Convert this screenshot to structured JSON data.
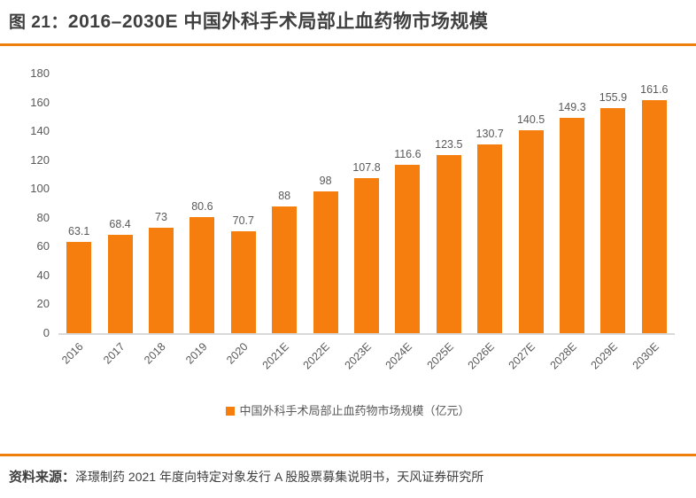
{
  "header": {
    "figure_label": "图 21：",
    "title": "2016–2030E 中国外科手术局部止血药物市场规模"
  },
  "chart_data": {
    "type": "bar",
    "title": "2016–2030E 中国外科手术局部止血药物市场规模",
    "categories": [
      "2016",
      "2017",
      "2018",
      "2019",
      "2020",
      "2021E",
      "2022E",
      "2023E",
      "2024E",
      "2025E",
      "2026E",
      "2027E",
      "2028E",
      "2029E",
      "2030E"
    ],
    "values": [
      63.1,
      68.4,
      73,
      80.6,
      70.7,
      88,
      98,
      107.8,
      116.6,
      123.5,
      130.7,
      140.5,
      149.3,
      155.9,
      161.6
    ],
    "value_labels": [
      "63.1",
      "68.4",
      "73",
      "80.6",
      "70.7",
      "88",
      "98",
      "107.8",
      "116.6",
      "123.5",
      "130.7",
      "140.5",
      "149.3",
      "155.9",
      "161.6"
    ],
    "ylim": [
      0,
      180
    ],
    "yticks": [
      0,
      20,
      40,
      60,
      80,
      100,
      120,
      140,
      160,
      180
    ],
    "grid": false,
    "legend_position": "bottom",
    "legend_label": "中国外科手术局部止血药物市场规模（亿元）",
    "unit": "亿元",
    "bar_color": "#f57e0f"
  },
  "source": {
    "prefix": "资料来源：",
    "text": "泽璟制药 2021 年度向特定对象发行 A 股股票募集说明书，天风证券研究所"
  },
  "colors": {
    "accent_orange": "#f57e0f",
    "divider_orange": "#ee7f0d",
    "axis_text": "#595959",
    "title_text": "#3f3f3f",
    "baseline_gray": "#d9d9d9"
  }
}
